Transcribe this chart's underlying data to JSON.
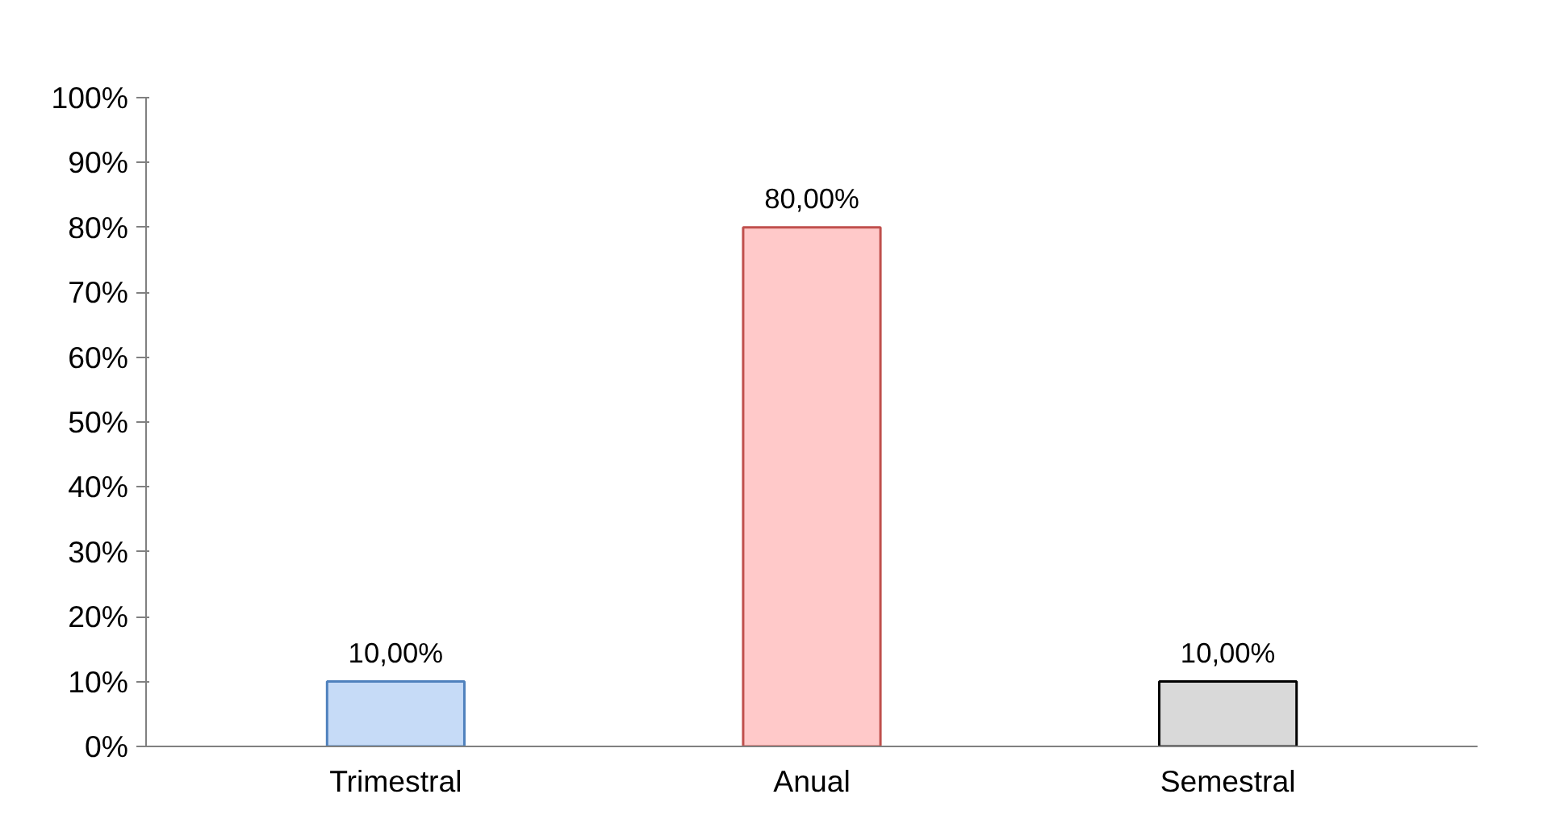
{
  "chart_data": {
    "type": "bar",
    "categories": [
      "Trimestral",
      "Anual",
      "Semestral"
    ],
    "values": [
      10,
      80,
      10
    ],
    "colors": [
      "#c6dbf7",
      "#ffc9c9",
      "#d9d9d9"
    ],
    "value_labels": [
      "10,00%",
      "80,00%",
      "10,00%"
    ],
    "ylim": [
      0,
      100
    ],
    "yticks": [
      {
        "value": 0,
        "label": "0%"
      },
      {
        "value": 10,
        "label": "10%"
      },
      {
        "value": 20,
        "label": "20%"
      },
      {
        "value": 30,
        "label": "30%"
      },
      {
        "value": 40,
        "label": "40%"
      },
      {
        "value": 50,
        "label": "50%"
      },
      {
        "value": 60,
        "label": "60%"
      },
      {
        "value": 70,
        "label": "70%"
      },
      {
        "value": 80,
        "label": "80%"
      },
      {
        "value": 90,
        "label": "90%"
      },
      {
        "value": 100,
        "label": "100%"
      }
    ],
    "grid": false,
    "legend": false
  }
}
